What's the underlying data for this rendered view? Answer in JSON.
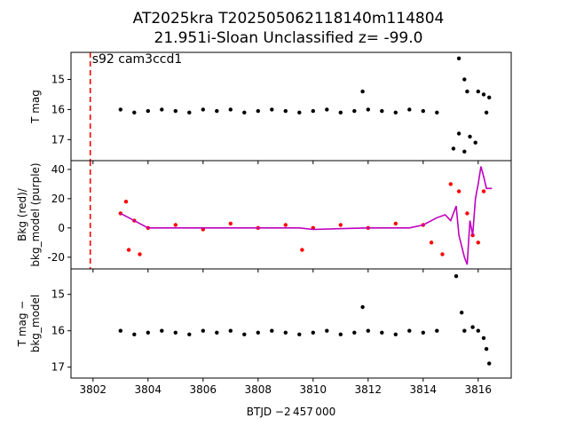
{
  "figure": {
    "title_line1": "AT2025kra  T202505062118140m114804",
    "title_line2": "21.951i-Sloan Unclassified z= -99.0",
    "xlabel": "BTJD −2 457 000",
    "annotation": "s92 cam3ccd1",
    "marker_line_color": "#ff0000",
    "panel_ylabels": [
      "T mag",
      "Bkg (red)/\nbkg_model (purple)",
      "T mag −\nbkg_model"
    ]
  },
  "chart_data": [
    {
      "type": "scatter",
      "name": "T mag",
      "ylabel": "T mag",
      "xlim": [
        3801.2,
        3817.2
      ],
      "ylim": [
        17.7,
        14.1
      ],
      "inverted_y": true,
      "yticks": [
        15,
        16,
        17
      ],
      "grid": false,
      "vertical_marker_x": 3801.9,
      "series": [
        {
          "color": "#000000",
          "points": [
            [
              3803.0,
              16.0
            ],
            [
              3803.5,
              16.1
            ],
            [
              3804.0,
              16.05
            ],
            [
              3804.5,
              16.0
            ],
            [
              3805.0,
              16.05
            ],
            [
              3805.5,
              16.1
            ],
            [
              3806.0,
              16.0
            ],
            [
              3806.5,
              16.05
            ],
            [
              3807.0,
              16.0
            ],
            [
              3807.5,
              16.1
            ],
            [
              3808.0,
              16.05
            ],
            [
              3808.5,
              16.0
            ],
            [
              3809.0,
              16.05
            ],
            [
              3809.5,
              16.1
            ],
            [
              3810.0,
              16.05
            ],
            [
              3810.5,
              16.0
            ],
            [
              3811.0,
              16.1
            ],
            [
              3811.5,
              16.05
            ],
            [
              3812.0,
              16.0
            ],
            [
              3812.5,
              16.05
            ],
            [
              3813.0,
              16.1
            ],
            [
              3813.5,
              16.0
            ],
            [
              3814.0,
              16.05
            ],
            [
              3814.5,
              16.1
            ],
            [
              3811.8,
              15.4
            ],
            [
              3815.1,
              17.3
            ],
            [
              3815.3,
              16.8
            ],
            [
              3815.5,
              17.4
            ],
            [
              3815.7,
              16.9
            ],
            [
              3815.9,
              17.1
            ],
            [
              3815.3,
              14.3
            ],
            [
              3815.5,
              15.0
            ],
            [
              3815.6,
              15.4
            ],
            [
              3816.0,
              15.4
            ],
            [
              3816.2,
              15.5
            ],
            [
              3816.4,
              15.6
            ],
            [
              3816.3,
              16.1
            ]
          ]
        }
      ]
    },
    {
      "type": "scatter",
      "name": "Bkg (red)/bkg_model (purple)",
      "ylabel": "Bkg (red)/\nbkg_model (purple)",
      "xlim": [
        3801.2,
        3817.2
      ],
      "ylim": [
        -28,
        46
      ],
      "yticks": [
        -20,
        0,
        20,
        40
      ],
      "grid": false,
      "vertical_marker_x": 3801.9,
      "series": [
        {
          "color": "#ff0000",
          "points": [
            [
              3803.0,
              10
            ],
            [
              3803.2,
              18
            ],
            [
              3803.3,
              -15
            ],
            [
              3803.5,
              5
            ],
            [
              3803.7,
              -18
            ],
            [
              3804.0,
              0
            ],
            [
              3805.0,
              2
            ],
            [
              3806.0,
              -1
            ],
            [
              3807.0,
              3
            ],
            [
              3808.0,
              0
            ],
            [
              3809.0,
              2
            ],
            [
              3809.6,
              -15
            ],
            [
              3810.0,
              0
            ],
            [
              3811.0,
              2
            ],
            [
              3812.0,
              0
            ],
            [
              3813.0,
              3
            ],
            [
              3814.0,
              2
            ],
            [
              3814.3,
              -10
            ],
            [
              3814.7,
              -18
            ],
            [
              3815.0,
              30
            ],
            [
              3815.3,
              25
            ],
            [
              3815.6,
              10
            ],
            [
              3815.8,
              -5
            ],
            [
              3816.0,
              -10
            ],
            [
              3816.2,
              25
            ]
          ]
        },
        {
          "color": "#bf00bf",
          "points": [
            [
              3803.0,
              10
            ],
            [
              3803.3,
              7
            ],
            [
              3803.7,
              3
            ],
            [
              3804.0,
              0
            ],
            [
              3806.0,
              0
            ],
            [
              3808.0,
              0
            ],
            [
              3809.5,
              0
            ],
            [
              3810.0,
              -1
            ],
            [
              3812.0,
              0
            ],
            [
              3813.5,
              0
            ],
            [
              3814.0,
              2
            ],
            [
              3814.5,
              7
            ],
            [
              3814.8,
              9
            ],
            [
              3815.0,
              5
            ],
            [
              3815.2,
              15
            ],
            [
              3815.3,
              -5
            ],
            [
              3815.5,
              -20
            ],
            [
              3815.6,
              -25
            ],
            [
              3815.7,
              5
            ],
            [
              3815.8,
              -5
            ],
            [
              3815.9,
              20
            ],
            [
              3816.0,
              30
            ],
            [
              3816.1,
              42
            ],
            [
              3816.2,
              35
            ],
            [
              3816.3,
              27
            ],
            [
              3816.5,
              27
            ]
          ]
        }
      ]
    },
    {
      "type": "scatter",
      "name": "T mag − bkg_model",
      "ylabel": "T mag −\nbkg_model",
      "xlabel": "BTJD −2 457 000",
      "xlim": [
        3801.2,
        3817.2
      ],
      "ylim": [
        17.3,
        14.3
      ],
      "inverted_y": true,
      "yticks": [
        15,
        16,
        17
      ],
      "xticks": [
        3802,
        3804,
        3806,
        3808,
        3810,
        3812,
        3814,
        3816
      ],
      "grid": false,
      "series": [
        {
          "color": "#000000",
          "points": [
            [
              3803.0,
              16.0
            ],
            [
              3803.5,
              16.1
            ],
            [
              3804.0,
              16.05
            ],
            [
              3804.5,
              16.0
            ],
            [
              3805.0,
              16.05
            ],
            [
              3805.5,
              16.1
            ],
            [
              3806.0,
              16.0
            ],
            [
              3806.5,
              16.05
            ],
            [
              3807.0,
              16.0
            ],
            [
              3807.5,
              16.1
            ],
            [
              3808.0,
              16.05
            ],
            [
              3808.5,
              16.0
            ],
            [
              3809.0,
              16.05
            ],
            [
              3809.5,
              16.1
            ],
            [
              3810.0,
              16.05
            ],
            [
              3810.5,
              16.0
            ],
            [
              3811.0,
              16.1
            ],
            [
              3811.5,
              16.05
            ],
            [
              3812.0,
              16.0
            ],
            [
              3812.5,
              16.05
            ],
            [
              3813.0,
              16.1
            ],
            [
              3813.5,
              16.0
            ],
            [
              3814.0,
              16.05
            ],
            [
              3814.5,
              16.0
            ],
            [
              3811.8,
              15.35
            ],
            [
              3815.2,
              14.5
            ],
            [
              3815.4,
              15.5
            ],
            [
              3815.5,
              16.0
            ],
            [
              3815.8,
              15.9
            ],
            [
              3816.0,
              16.0
            ],
            [
              3816.2,
              16.2
            ],
            [
              3816.3,
              16.5
            ],
            [
              3816.4,
              16.9
            ]
          ]
        }
      ]
    }
  ]
}
